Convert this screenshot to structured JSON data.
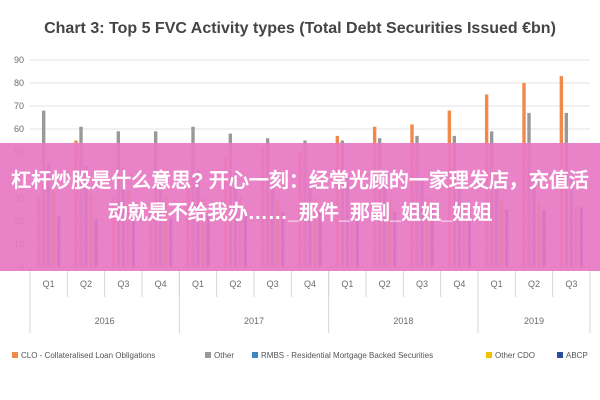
{
  "overlay": {
    "text": "杠杆炒股是什么意思? 开心一刻：经常光顾的一家理发店，充值活动就是不给我办……_那件_那副_姐姐_姐姐"
  },
  "colors": {
    "CLO": "#f08a4b",
    "Other": "#999999",
    "RMBS": "#3a87c8",
    "OtherCDO": "#f2c200",
    "ABCP": "#2b4fa0",
    "overlay": "#e878c4"
  },
  "chart_data": {
    "type": "bar",
    "title": "Chart 3: Top 5 FVC Activity types (Total Debt Securities Issued €bn)",
    "categories": [
      "Q1",
      "Q2",
      "Q3",
      "Q4",
      "Q1",
      "Q2",
      "Q3",
      "Q4",
      "Q1",
      "Q2",
      "Q3",
      "Q4",
      "Q1",
      "Q2",
      "Q3"
    ],
    "groups": [
      {
        "label": "2016",
        "span": 4
      },
      {
        "label": "2017",
        "span": 4
      },
      {
        "label": "2018",
        "span": 4
      },
      {
        "label": "2019",
        "span": 3
      }
    ],
    "ylim": [
      0,
      90
    ],
    "yticks": [
      0,
      10,
      20,
      30,
      40,
      50,
      60,
      70,
      80,
      90
    ],
    "grid": true,
    "legend_position": "bottom",
    "series": [
      {
        "name": "CLO - Collateralised Loan Obligations",
        "color": "#f08a4b",
        "values": [
          30,
          55,
          30,
          28,
          40,
          48,
          52,
          50,
          57,
          61,
          62,
          68,
          75,
          80,
          83
        ]
      },
      {
        "name": "Other",
        "color": "#999999",
        "values": [
          68,
          61,
          59,
          59,
          61,
          58,
          56,
          55,
          55,
          56,
          57,
          57,
          59,
          67,
          67
        ]
      },
      {
        "name": "RMBS - Residential Mortgage Backed Securities",
        "color": "#3a87c8",
        "values": [
          45,
          44,
          43,
          42,
          42,
          41,
          41,
          40,
          40,
          39,
          38,
          37,
          37,
          38,
          38
        ]
      },
      {
        "name": "Other CDO",
        "color": "#f2c200",
        "values": [
          33,
          32,
          33,
          31,
          30,
          31,
          29,
          30,
          28,
          29,
          30,
          27,
          29,
          28,
          27
        ]
      },
      {
        "name": "ABCP",
        "color": "#2b4fa0",
        "values": [
          22,
          21,
          22,
          21,
          22,
          23,
          24,
          24,
          24,
          24,
          25,
          25,
          25,
          25,
          26
        ]
      }
    ]
  }
}
